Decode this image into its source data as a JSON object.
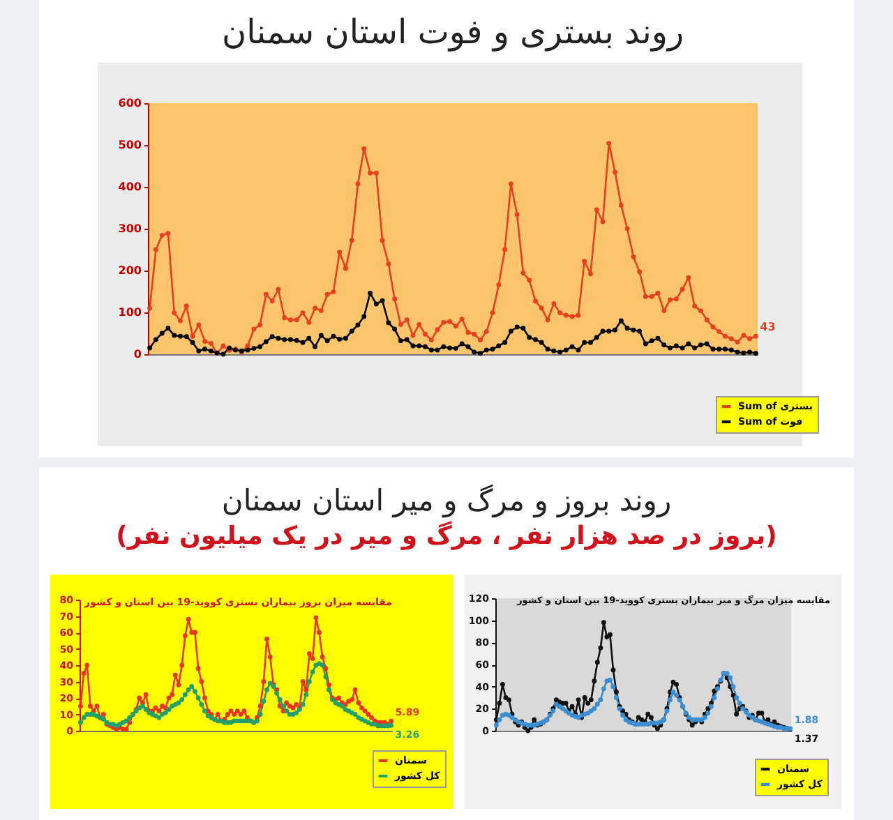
{
  "chart_data": [
    {
      "type": "line",
      "title": "روند بستری و فوت استان سمنان",
      "categories": [
        null,
        null,
        null,
        null,
        null,
        null,
        null,
        null,
        null,
        null,
        null,
        null,
        null,
        null,
        null,
        null,
        null,
        null,
        null,
        null,
        null,
        null,
        null,
        null,
        null,
        null,
        null,
        null,
        null,
        null,
        null,
        null,
        null,
        null,
        null,
        null,
        null,
        null,
        null,
        null,
        null,
        null,
        null,
        null,
        null,
        null,
        null,
        null,
        null,
        null,
        null,
        null,
        null,
        null,
        null,
        null,
        null,
        null,
        null,
        null,
        null,
        null,
        null,
        null,
        null,
        null,
        null,
        null,
        null,
        null,
        null,
        null,
        null,
        null,
        null,
        null,
        null,
        null,
        null,
        null,
        null,
        null,
        null,
        null,
        null,
        null,
        null,
        null,
        null,
        null,
        null,
        null,
        null,
        null,
        null,
        null,
        null,
        null,
        null,
        null
      ],
      "series": [
        {
          "name": "Sum of بستری",
          "color": "#e8401c",
          "values": [
            110,
            250,
            284,
            289,
            99,
            80,
            115,
            43,
            70,
            31,
            26,
            2,
            20,
            9,
            12,
            5,
            20,
            60,
            70,
            143,
            127,
            155,
            87,
            82,
            82,
            99,
            76,
            110,
            104,
            143,
            149,
            244,
            205,
            272,
            407,
            491,
            433,
            433,
            272,
            216,
            132,
            71,
            82,
            45,
            71,
            48,
            34,
            59,
            76,
            78,
            67,
            84,
            52,
            48,
            34,
            54,
            99,
            166,
            250,
            407,
            334,
            194,
            177,
            127,
            110,
            82,
            121,
            99,
            93,
            90,
            93,
            222,
            192,
            345,
            317,
            504,
            435,
            356,
            300,
            233,
            197,
            138,
            138,
            146,
            104,
            130,
            132,
            155,
            183,
            115,
            104,
            82,
            65,
            54,
            43,
            37,
            29,
            45,
            37,
            43
          ],
          "value_labels": [
            null,
            null,
            null,
            null,
            null,
            null,
            null,
            null,
            null,
            null,
            null,
            null,
            null,
            null,
            null,
            null,
            null,
            null,
            null,
            null,
            null,
            null,
            null,
            null,
            null,
            null,
            null,
            null,
            null,
            null,
            null,
            null,
            null,
            null,
            null,
            null,
            null,
            null,
            null,
            null,
            null,
            null,
            null,
            null,
            null,
            null,
            null,
            null,
            null,
            null,
            null,
            null,
            null,
            null,
            null,
            null,
            null,
            null,
            null,
            null,
            null,
            null,
            null,
            null,
            null,
            null,
            null,
            null,
            null,
            null,
            null,
            null,
            null,
            null,
            null,
            null,
            null,
            null,
            null,
            null,
            null,
            null,
            null,
            null,
            null,
            null,
            null,
            null,
            null,
            null,
            null,
            null,
            null,
            null,
            null,
            null,
            null,
            null,
            null,
            "43"
          ]
        },
        {
          "name": "Sum of فوت",
          "color": "#000000",
          "values": [
            15,
            35,
            50,
            62,
            45,
            43,
            42,
            28,
            8,
            12,
            8,
            3,
            0,
            15,
            10,
            8,
            10,
            14,
            18,
            30,
            42,
            38,
            35,
            35,
            33,
            28,
            38,
            18,
            45,
            32,
            43,
            36,
            38,
            55,
            70,
            90,
            146,
            120,
            128,
            75,
            60,
            32,
            35,
            20,
            20,
            18,
            10,
            10,
            18,
            15,
            14,
            25,
            18,
            5,
            2,
            10,
            12,
            20,
            28,
            55,
            65,
            62,
            40,
            35,
            28,
            12,
            8,
            5,
            10,
            18,
            10,
            28,
            28,
            40,
            55,
            55,
            58,
            80,
            62,
            58,
            55,
            25,
            32,
            38,
            22,
            15,
            20,
            15,
            25,
            15,
            22,
            25,
            12,
            12,
            12,
            10,
            5,
            3,
            5,
            2
          ]
        }
      ],
      "ylim": [
        0,
        600
      ],
      "yticks": [
        0,
        100,
        200,
        300,
        400,
        500,
        600
      ],
      "legend": "bottom right",
      "marker": "circle"
    },
    {
      "type": "other",
      "title": "روند بروز و مرگ و میر استان سمنان",
      "subtitle": "(بروز در صد هزار نفر ، مرگ و میر در یک میلیون نفر)"
    },
    {
      "type": "line",
      "title": "مقایسه میزان بروز بیماران بستری کووید-19 بین استان و کشور",
      "categories": [
        null,
        null,
        null,
        null,
        null,
        null,
        null,
        null,
        null,
        null,
        null,
        null,
        null,
        null,
        null,
        null,
        null,
        null,
        null,
        null,
        null,
        null,
        null,
        null,
        null,
        null,
        null,
        null,
        null,
        null,
        null,
        null,
        null,
        null,
        null,
        null,
        null,
        null,
        null,
        null,
        null,
        null,
        null,
        null,
        null,
        null,
        null,
        null,
        null,
        null,
        null,
        null,
        null,
        null,
        null,
        null,
        null,
        null,
        null,
        null,
        null,
        null,
        null,
        null,
        null,
        null,
        null,
        null,
        null,
        null,
        null,
        null,
        null,
        null,
        null,
        null,
        null,
        null,
        null,
        null,
        null,
        null,
        null,
        null,
        null,
        null,
        null,
        null,
        null,
        null,
        null,
        null,
        null,
        null,
        null,
        null
      ],
      "series": [
        {
          "name": "سمنان",
          "color": "#e8361e",
          "values": [
            15,
            35,
            40,
            15,
            12,
            15,
            8,
            10,
            4,
            3,
            2,
            1,
            2,
            1,
            1,
            5,
            10,
            13,
            20,
            17,
            22,
            12,
            12,
            14,
            12,
            15,
            14,
            20,
            22,
            34,
            28,
            40,
            58,
            68,
            60,
            60,
            38,
            30,
            20,
            12,
            10,
            7,
            10,
            6,
            7,
            10,
            12,
            10,
            12,
            10,
            12,
            8,
            6,
            5,
            8,
            15,
            30,
            56,
            45,
            28,
            25,
            15,
            12,
            17,
            15,
            14,
            16,
            14,
            30,
            25,
            47,
            44,
            69,
            60,
            45,
            38,
            28,
            20,
            19,
            20,
            17,
            16,
            18,
            19,
            25,
            17,
            14,
            12,
            10,
            8,
            6,
            5,
            5,
            5,
            4,
            5.89
          ],
          "value_labels": [
            null,
            null,
            null,
            null,
            null,
            null,
            null,
            null,
            null,
            null,
            null,
            null,
            null,
            null,
            null,
            null,
            null,
            null,
            null,
            null,
            null,
            null,
            null,
            null,
            null,
            null,
            null,
            null,
            null,
            null,
            null,
            null,
            null,
            null,
            null,
            null,
            null,
            null,
            null,
            null,
            null,
            null,
            null,
            null,
            null,
            null,
            null,
            null,
            null,
            null,
            null,
            null,
            null,
            null,
            null,
            null,
            null,
            null,
            null,
            null,
            null,
            null,
            null,
            null,
            null,
            null,
            null,
            null,
            null,
            null,
            null,
            null,
            null,
            null,
            null,
            null,
            null,
            null,
            null,
            null,
            null,
            null,
            null,
            null,
            null,
            null,
            null,
            null,
            null,
            null,
            null,
            null,
            null,
            null,
            null,
            "5.89"
          ]
        },
        {
          "name": "کل کشور",
          "color": "#23a06a",
          "values": [
            5,
            8,
            10,
            10,
            10,
            9,
            8,
            7,
            5,
            4,
            4,
            3,
            4,
            5,
            6,
            8,
            10,
            12,
            14,
            15,
            13,
            11,
            10,
            9,
            8,
            10,
            11,
            13,
            15,
            16,
            17,
            19,
            22,
            25,
            27,
            24,
            20,
            16,
            12,
            9,
            8,
            7,
            6,
            6,
            5,
            5,
            5,
            6,
            6,
            6,
            6,
            6,
            6,
            5,
            6,
            10,
            18,
            25,
            29,
            27,
            23,
            19,
            15,
            12,
            10,
            10,
            11,
            13,
            16,
            22,
            30,
            36,
            40,
            41,
            40,
            33,
            25,
            19,
            17,
            16,
            15,
            13,
            12,
            11,
            10,
            8,
            7,
            6,
            5,
            4,
            4,
            3,
            3,
            3,
            3,
            3.26
          ],
          "value_labels": [
            null,
            null,
            null,
            null,
            null,
            null,
            null,
            null,
            null,
            null,
            null,
            null,
            null,
            null,
            null,
            null,
            null,
            null,
            null,
            null,
            null,
            null,
            null,
            null,
            null,
            null,
            null,
            null,
            null,
            null,
            null,
            null,
            null,
            null,
            null,
            null,
            null,
            null,
            null,
            null,
            null,
            null,
            null,
            null,
            null,
            null,
            null,
            null,
            null,
            null,
            null,
            null,
            null,
            null,
            null,
            null,
            null,
            null,
            null,
            null,
            null,
            null,
            null,
            null,
            null,
            null,
            null,
            null,
            null,
            null,
            null,
            null,
            null,
            null,
            null,
            null,
            null,
            null,
            null,
            null,
            null,
            null,
            null,
            null,
            null,
            null,
            null,
            null,
            null,
            null,
            null,
            null,
            null,
            null,
            null,
            "3.26"
          ]
        }
      ],
      "ylim": [
        0,
        80
      ],
      "yticks": [
        0,
        10,
        20,
        30,
        40,
        50,
        60,
        70,
        80
      ],
      "legend": "bottom right",
      "marker": "circle"
    },
    {
      "type": "line",
      "title": "مقایسه میزان مرگ و میر بیماران بستری کووید-19 بین استان و کشور",
      "categories": [
        null,
        null,
        null,
        null,
        null,
        null,
        null,
        null,
        null,
        null,
        null,
        null,
        null,
        null,
        null,
        null,
        null,
        null,
        null,
        null,
        null,
        null,
        null,
        null,
        null,
        null,
        null,
        null,
        null,
        null,
        null,
        null,
        null,
        null,
        null,
        null,
        null,
        null,
        null,
        null,
        null,
        null,
        null,
        null,
        null,
        null,
        null,
        null,
        null,
        null,
        null,
        null,
        null,
        null,
        null,
        null,
        null,
        null,
        null,
        null,
        null,
        null,
        null,
        null,
        null,
        null,
        null,
        null,
        null,
        null,
        null,
        null,
        null,
        null,
        null,
        null,
        null,
        null,
        null,
        null,
        null,
        null,
        null,
        null,
        null,
        null,
        null,
        null,
        null,
        null,
        null,
        null,
        null,
        null
      ],
      "series": [
        {
          "name": "سمنان",
          "color": "#111111",
          "values": [
            10,
            25,
            42,
            30,
            28,
            15,
            8,
            5,
            8,
            3,
            0,
            3,
            10,
            5,
            6,
            8,
            10,
            15,
            20,
            28,
            26,
            25,
            25,
            18,
            22,
            15,
            28,
            12,
            30,
            25,
            28,
            45,
            62,
            75,
            98,
            85,
            87,
            55,
            35,
            22,
            18,
            15,
            10,
            8,
            6,
            12,
            10,
            8,
            15,
            12,
            5,
            2,
            5,
            10,
            20,
            35,
            44,
            42,
            30,
            22,
            15,
            10,
            5,
            8,
            10,
            8,
            15,
            20,
            25,
            36,
            40,
            45,
            52,
            48,
            40,
            32,
            15,
            20,
            22,
            18,
            12,
            14,
            10,
            16,
            16,
            8,
            10,
            6,
            8,
            5,
            4,
            3,
            2,
            1.37
          ],
          "value_labels": [
            null,
            null,
            null,
            null,
            null,
            null,
            null,
            null,
            null,
            null,
            null,
            null,
            null,
            null,
            null,
            null,
            null,
            null,
            null,
            null,
            null,
            null,
            null,
            null,
            null,
            null,
            null,
            null,
            null,
            null,
            null,
            null,
            null,
            null,
            null,
            null,
            null,
            null,
            null,
            null,
            null,
            null,
            null,
            null,
            null,
            null,
            null,
            null,
            null,
            null,
            null,
            null,
            null,
            null,
            null,
            null,
            null,
            null,
            null,
            null,
            null,
            null,
            null,
            null,
            null,
            null,
            null,
            null,
            null,
            null,
            null,
            null,
            null,
            null,
            null,
            null,
            null,
            null,
            null,
            null,
            null,
            null,
            null,
            null,
            null,
            null,
            null,
            null,
            null,
            null,
            null,
            null,
            null,
            "1.37"
          ]
        },
        {
          "name": "کل کشور",
          "color": "#3a8fd2",
          "values": [
            5,
            10,
            14,
            15,
            14,
            12,
            10,
            8,
            7,
            6,
            5,
            5,
            5,
            6,
            7,
            8,
            10,
            14,
            18,
            24,
            22,
            20,
            18,
            16,
            14,
            13,
            12,
            14,
            15,
            16,
            18,
            20,
            24,
            28,
            38,
            45,
            46,
            40,
            30,
            20,
            14,
            10,
            8,
            7,
            6,
            6,
            6,
            6,
            6,
            7,
            7,
            7,
            8,
            10,
            18,
            28,
            35,
            32,
            28,
            22,
            16,
            12,
            10,
            10,
            10,
            10,
            12,
            16,
            22,
            30,
            38,
            46,
            52,
            52,
            48,
            40,
            30,
            25,
            20,
            17,
            14,
            12,
            10,
            9,
            8,
            7,
            6,
            5,
            4,
            3,
            3,
            2,
            2,
            1.88
          ],
          "value_labels": [
            null,
            null,
            null,
            null,
            null,
            null,
            null,
            null,
            null,
            null,
            null,
            null,
            null,
            null,
            null,
            null,
            null,
            null,
            null,
            null,
            null,
            null,
            null,
            null,
            null,
            null,
            null,
            null,
            null,
            null,
            null,
            null,
            null,
            null,
            null,
            null,
            null,
            null,
            null,
            null,
            null,
            null,
            null,
            null,
            null,
            null,
            null,
            null,
            null,
            null,
            null,
            null,
            null,
            null,
            null,
            null,
            null,
            null,
            null,
            null,
            null,
            null,
            null,
            null,
            null,
            null,
            null,
            null,
            null,
            null,
            null,
            null,
            null,
            null,
            null,
            null,
            null,
            null,
            null,
            null,
            null,
            null,
            null,
            null,
            null,
            null,
            null,
            null,
            null,
            null,
            null,
            null,
            null,
            "1.88"
          ]
        }
      ],
      "ylim": [
        0,
        120
      ],
      "yticks": [
        0,
        20,
        40,
        60,
        80,
        100,
        120
      ],
      "legend": "bottom right",
      "marker": "circle"
    }
  ]
}
